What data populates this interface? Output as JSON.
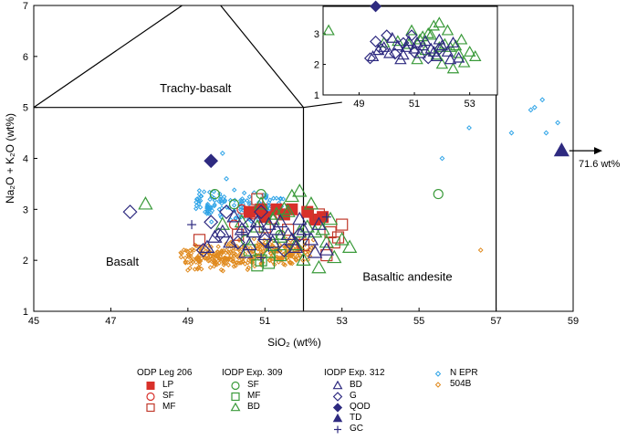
{
  "chart_data": {
    "type": "scatter",
    "xlabel": "SiO₂ (wt%)",
    "ylabel": "Na₂O + K₂O (wt%)",
    "xlim": [
      45,
      59
    ],
    "ylim": [
      1,
      7
    ],
    "x_ticks": [
      45,
      47,
      49,
      51,
      53,
      55,
      57,
      59
    ],
    "y_ticks": [
      1,
      2,
      3,
      4,
      5,
      6,
      7
    ],
    "inset": {
      "xlim": [
        47.7,
        54
      ],
      "ylim": [
        1,
        3.9
      ],
      "x_ticks": [
        49,
        51,
        53
      ],
      "y_ticks": [
        1,
        2,
        3
      ]
    },
    "fields": [
      {
        "label": "Trachy-basalt",
        "x": 49.2,
        "y": 5.3
      },
      {
        "label": "Basalt",
        "x": 47.3,
        "y": 1.9
      },
      {
        "label": "Basaltic andesite",
        "x": 54.7,
        "y": 1.6
      }
    ],
    "annotation": {
      "text": "71.6 wt%"
    },
    "legend_groups": [
      {
        "title": "ODP Leg 206",
        "entries": [
          {
            "label": "LP",
            "symbol": "square-filled",
            "color": "#d8302a"
          },
          {
            "label": "SF",
            "symbol": "circle-open",
            "color": "#d8302a"
          },
          {
            "label": "MF",
            "symbol": "square-open",
            "color": "#c0392b"
          }
        ]
      },
      {
        "title": "IODP Exp. 309",
        "entries": [
          {
            "label": "SF",
            "symbol": "circle-open",
            "color": "#3a9a3a"
          },
          {
            "label": "MF",
            "symbol": "square-open",
            "color": "#3a9a3a"
          },
          {
            "label": "BD",
            "symbol": "triangle-open",
            "color": "#3a9a3a"
          }
        ]
      },
      {
        "title": "IODP Exp. 312",
        "entries": [
          {
            "label": "BD",
            "symbol": "triangle-open",
            "color": "#2e2a80"
          },
          {
            "label": "G",
            "symbol": "diamond-open",
            "color": "#2e2a80"
          },
          {
            "label": "QOD",
            "symbol": "diamond-filled",
            "color": "#2e2a80"
          },
          {
            "label": "TD",
            "symbol": "triangle-filled",
            "color": "#2e2a80"
          },
          {
            "label": "GC",
            "symbol": "plus",
            "color": "#2e2a80"
          }
        ]
      },
      {
        "title": "",
        "entries": [
          {
            "label": "N EPR",
            "symbol": "diamond-small-open",
            "color": "#2fa4e7"
          },
          {
            "label": "504B",
            "symbol": "diamond-small-open",
            "color": "#e08a1e"
          }
        ]
      }
    ],
    "series": [
      {
        "name": "LP",
        "symbol": "square-filled",
        "color": "#d8302a",
        "points": [
          [
            50.6,
            2.95
          ],
          [
            50.9,
            3.0
          ],
          [
            51.3,
            3.0
          ],
          [
            51.7,
            3.0
          ],
          [
            52.1,
            2.95
          ],
          [
            52.5,
            2.85
          ],
          [
            51.0,
            2.85
          ],
          [
            51.5,
            2.9
          ],
          [
            52.3,
            2.8
          ]
        ]
      },
      {
        "name": "SF",
        "symbol": "circle-open",
        "color": "#d8302a",
        "points": [
          [
            50.4,
            3.0
          ],
          [
            50.7,
            2.9
          ],
          [
            51.2,
            2.8
          ],
          [
            50.2,
            2.7
          ]
        ]
      },
      {
        "name": "MF",
        "symbol": "square-open",
        "color": "#c0392b",
        "points": [
          [
            50.8,
            3.2
          ],
          [
            51.0,
            2.65
          ],
          [
            52.4,
            2.9
          ],
          [
            52.7,
            2.55
          ],
          [
            52.9,
            2.45
          ],
          [
            53.0,
            2.7
          ],
          [
            52.6,
            2.1
          ],
          [
            52.0,
            2.3
          ],
          [
            51.6,
            2.6
          ],
          [
            49.3,
            2.4
          ],
          [
            50.3,
            2.5
          ],
          [
            52.8,
            2.35
          ]
        ]
      },
      {
        "name": "SF",
        "symbol": "circle-open",
        "color": "#3a9a3a",
        "points": [
          [
            49.7,
            3.3
          ],
          [
            50.2,
            3.1
          ],
          [
            50.5,
            2.4
          ],
          [
            55.5,
            3.3
          ],
          [
            50.9,
            3.3
          ],
          [
            51.4,
            2.5
          ]
        ]
      },
      {
        "name": "MF",
        "symbol": "square-open",
        "color": "#3a9a3a",
        "points": [
          [
            50.6,
            2.2
          ],
          [
            50.9,
            2.0
          ],
          [
            51.1,
            1.95
          ],
          [
            51.4,
            2.1
          ],
          [
            50.8,
            1.9
          ],
          [
            51.2,
            2.3
          ]
        ]
      },
      {
        "name": "BD",
        "symbol": "triangle-open",
        "color": "#3a9a3a",
        "points": [
          [
            47.9,
            3.1
          ],
          [
            51.7,
            3.25
          ],
          [
            51.9,
            3.35
          ],
          [
            51.5,
            3.0
          ],
          [
            52.2,
            3.1
          ],
          [
            51.2,
            2.8
          ],
          [
            50.8,
            2.65
          ],
          [
            52.3,
            2.55
          ],
          [
            52.6,
            2.35
          ],
          [
            52.8,
            2.05
          ],
          [
            53.2,
            2.25
          ],
          [
            52.4,
            1.85
          ],
          [
            51.1,
            2.15
          ],
          [
            50.4,
            2.75
          ],
          [
            51.6,
            2.95
          ],
          [
            52.1,
            2.65
          ],
          [
            51.8,
            2.3
          ],
          [
            53.0,
            2.4
          ],
          [
            52.5,
            2.6
          ],
          [
            51.4,
            2.45
          ],
          [
            52.0,
            2.0
          ],
          [
            50.9,
            3.1
          ],
          [
            51.3,
            2.9
          ],
          [
            49.9,
            2.7
          ],
          [
            52.7,
            2.8
          ],
          [
            51.9,
            2.55
          ]
        ]
      },
      {
        "name": "BD",
        "symbol": "triangle-open",
        "color": "#2e2a80",
        "points": [
          [
            49.5,
            2.25
          ],
          [
            49.9,
            2.55
          ],
          [
            50.2,
            2.85
          ],
          [
            50.4,
            2.6
          ],
          [
            50.6,
            2.3
          ],
          [
            50.8,
            2.75
          ],
          [
            51.0,
            2.5
          ],
          [
            51.2,
            2.35
          ],
          [
            51.4,
            2.75
          ],
          [
            51.6,
            2.5
          ],
          [
            51.8,
            2.25
          ],
          [
            52.0,
            2.6
          ],
          [
            52.2,
            2.4
          ],
          [
            52.4,
            2.7
          ],
          [
            52.6,
            2.2
          ],
          [
            50.1,
            2.35
          ],
          [
            50.7,
            2.55
          ],
          [
            51.3,
            2.6
          ],
          [
            51.9,
            2.8
          ],
          [
            50.5,
            2.15
          ],
          [
            49.7,
            2.45
          ],
          [
            52.3,
            2.15
          ],
          [
            51.1,
            2.7
          ],
          [
            51.7,
            2.4
          ]
        ]
      },
      {
        "name": "G",
        "symbol": "diamond-open",
        "color": "#2e2a80",
        "points": [
          [
            47.5,
            2.95
          ],
          [
            49.4,
            2.2
          ],
          [
            49.8,
            2.5
          ],
          [
            50.0,
            2.95
          ],
          [
            50.3,
            2.35
          ],
          [
            50.6,
            2.7
          ],
          [
            51.0,
            2.4
          ],
          [
            51.5,
            2.2
          ],
          [
            51.9,
            2.5
          ],
          [
            50.9,
            2.95
          ],
          [
            49.6,
            2.75
          ]
        ]
      },
      {
        "name": "QOD",
        "symbol": "diamond-filled",
        "color": "#2e2a80",
        "points": [
          [
            49.6,
            3.95
          ]
        ]
      },
      {
        "name": "TD",
        "symbol": "triangle-filled",
        "color": "#2e2a80",
        "points": [
          [
            58.7,
            4.15
          ]
        ]
      },
      {
        "name": "GC",
        "symbol": "plus",
        "color": "#2e2a80",
        "points": [
          [
            49.1,
            2.7
          ],
          [
            50.4,
            2.55
          ],
          [
            51.1,
            2.25
          ],
          [
            52.6,
            2.85
          ],
          [
            50.9,
            2.05
          ]
        ]
      },
      {
        "name": "N EPR",
        "symbol": "diamond-small-open",
        "color": "#2fa4e7",
        "points": [
          [
            49.9,
            4.1
          ],
          [
            50.0,
            3.6
          ],
          [
            55.6,
            4.0
          ],
          [
            56.3,
            4.6
          ],
          [
            57.4,
            4.5
          ],
          [
            58.0,
            5.0
          ],
          [
            58.2,
            5.15
          ],
          [
            58.6,
            4.7
          ],
          [
            58.3,
            4.5
          ],
          [
            57.9,
            4.95
          ]
        ]
      },
      {
        "name": "504B",
        "symbol": "diamond-small-open",
        "color": "#e08a1e",
        "points": [
          [
            56.6,
            2.2
          ]
        ]
      }
    ]
  }
}
